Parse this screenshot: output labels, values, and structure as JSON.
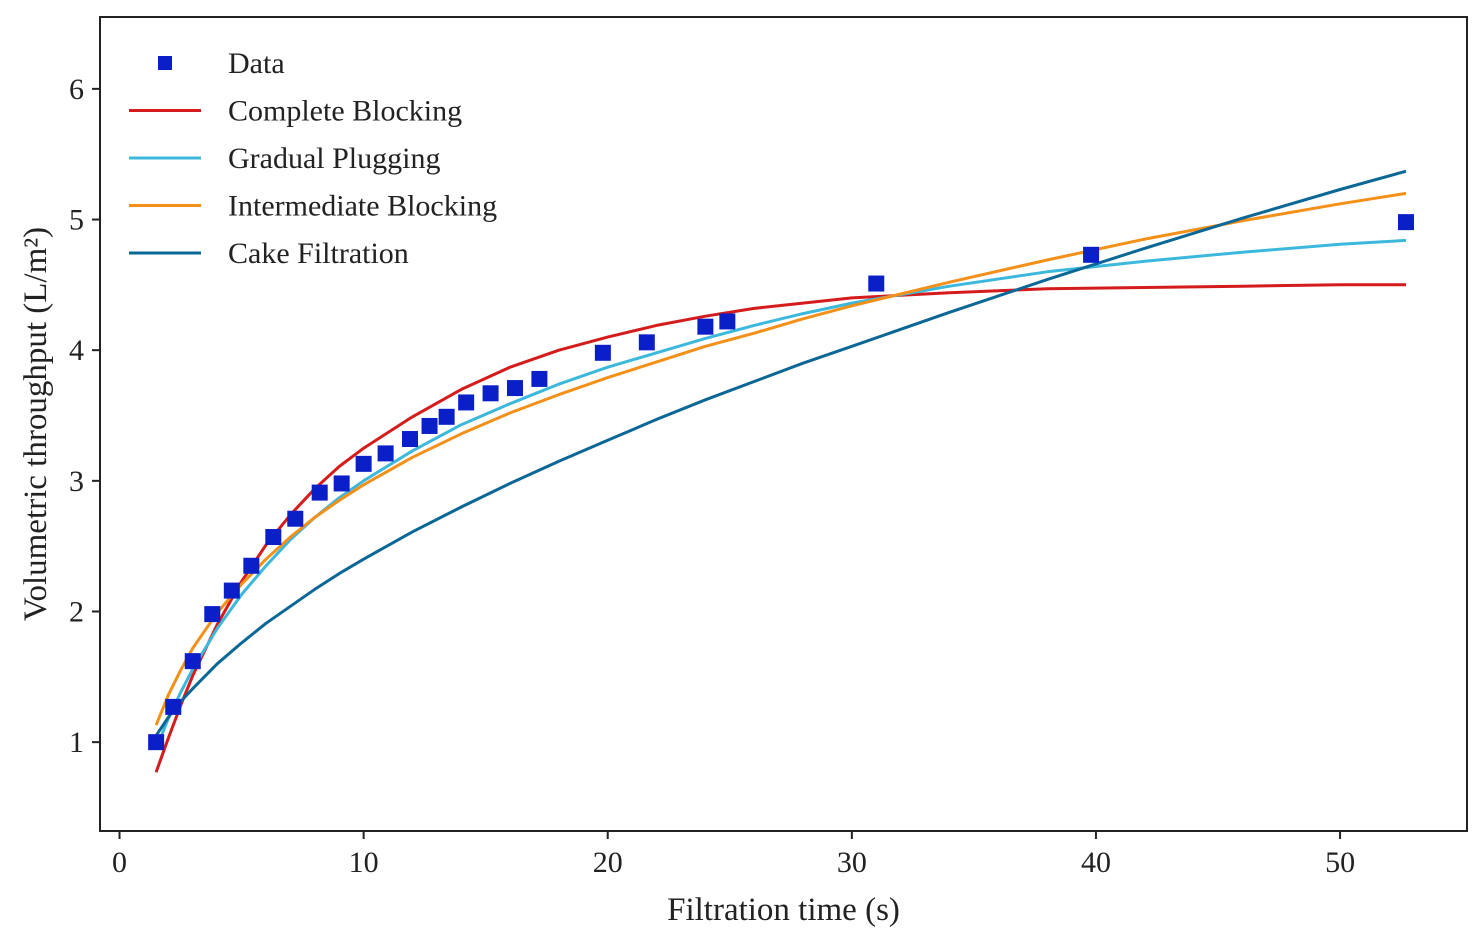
{
  "chart_data": {
    "type": "line",
    "title": "",
    "xlabel": "Filtration time (s)",
    "ylabel": "Volumetric throughput (L/m²)",
    "xlim": [
      -0.8,
      55.2
    ],
    "ylim": [
      0.32,
      6.55
    ],
    "xticks": [
      0,
      10,
      20,
      30,
      40,
      50
    ],
    "yticks": [
      1,
      2,
      3,
      4,
      5,
      6
    ],
    "grid": false,
    "legend_position": "top-left",
    "data_points": {
      "name": "Data",
      "color": "#0a1fc8",
      "marker": "square",
      "x": [
        1.5,
        2.2,
        3.0,
        3.8,
        4.6,
        5.4,
        6.3,
        7.2,
        8.2,
        9.1,
        10.0,
        10.9,
        11.9,
        12.7,
        13.4,
        14.2,
        15.2,
        16.2,
        17.2,
        19.8,
        21.6,
        24.0,
        24.9,
        31.0,
        39.8,
        52.7
      ],
      "y": [
        1.0,
        1.27,
        1.62,
        1.98,
        2.16,
        2.35,
        2.57,
        2.71,
        2.91,
        2.98,
        3.13,
        3.21,
        3.32,
        3.42,
        3.49,
        3.6,
        3.67,
        3.71,
        3.78,
        3.98,
        4.06,
        4.18,
        4.22,
        4.51,
        4.73,
        4.98
      ]
    },
    "series": [
      {
        "name": "Complete Blocking",
        "color": "#d41c1c",
        "x": [
          1.5,
          2,
          2.5,
          3,
          4,
          5,
          6,
          7,
          8,
          9,
          10,
          12,
          14,
          16,
          18,
          20,
          22,
          24,
          26,
          28,
          30,
          34,
          38,
          42,
          46,
          50,
          52.7
        ],
        "y": [
          0.77,
          1.03,
          1.28,
          1.51,
          1.9,
          2.23,
          2.51,
          2.74,
          2.94,
          3.11,
          3.25,
          3.49,
          3.7,
          3.87,
          4.0,
          4.1,
          4.19,
          4.26,
          4.32,
          4.36,
          4.4,
          4.44,
          4.47,
          4.48,
          4.49,
          4.5,
          4.5
        ]
      },
      {
        "name": "Gradual Plugging",
        "color": "#3cb8dc",
        "x": [
          1.5,
          2,
          2.5,
          3,
          4,
          5,
          6,
          7,
          8,
          9,
          10,
          12,
          14,
          16,
          18,
          20,
          22,
          24,
          26,
          28,
          30,
          34,
          38,
          42,
          46,
          50,
          52.7
        ],
        "y": [
          0.95,
          1.18,
          1.38,
          1.56,
          1.87,
          2.13,
          2.35,
          2.55,
          2.72,
          2.87,
          3.0,
          3.23,
          3.43,
          3.59,
          3.74,
          3.87,
          3.98,
          4.09,
          4.19,
          4.28,
          4.36,
          4.49,
          4.6,
          4.68,
          4.75,
          4.81,
          4.84
        ]
      },
      {
        "name": "Intermediate Blocking",
        "color": "#f39019",
        "x": [
          1.5,
          2,
          2.5,
          3,
          4,
          5,
          6,
          7,
          8,
          9,
          10,
          12,
          14,
          16,
          18,
          20,
          22,
          24,
          26,
          28,
          30,
          34,
          38,
          42,
          46,
          50,
          52.7
        ],
        "y": [
          1.13,
          1.36,
          1.55,
          1.72,
          1.99,
          2.21,
          2.4,
          2.57,
          2.72,
          2.85,
          2.97,
          3.18,
          3.36,
          3.52,
          3.66,
          3.79,
          3.91,
          4.03,
          4.13,
          4.24,
          4.34,
          4.52,
          4.69,
          4.85,
          4.99,
          5.12,
          5.2
        ]
      },
      {
        "name": "Cake Filtration",
        "color": "#0b6796",
        "x": [
          1.5,
          2,
          2.5,
          3,
          4,
          5,
          6,
          7,
          8,
          9,
          10,
          12,
          14,
          16,
          18,
          20,
          22,
          24,
          26,
          28,
          30,
          34,
          38,
          42,
          46,
          50,
          52.7
        ],
        "y": [
          1.05,
          1.19,
          1.31,
          1.41,
          1.6,
          1.76,
          1.91,
          2.04,
          2.17,
          2.29,
          2.4,
          2.61,
          2.8,
          2.98,
          3.15,
          3.31,
          3.47,
          3.62,
          3.76,
          3.9,
          4.03,
          4.29,
          4.54,
          4.78,
          5.01,
          5.23,
          5.37
        ]
      }
    ]
  }
}
